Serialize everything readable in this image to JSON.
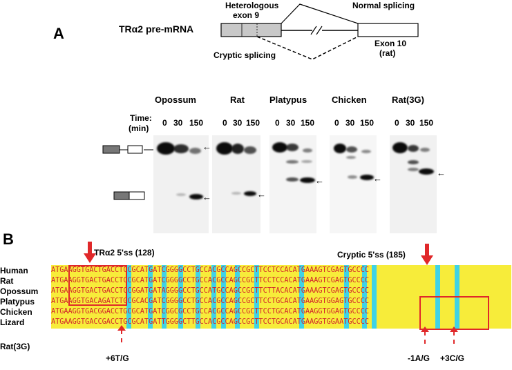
{
  "panel_a": {
    "letter": "A",
    "construct_label": "TRα2 pre-mRNA",
    "heterologous_label_line1": "Heterologous",
    "heterologous_label_line2": "exon 9",
    "normal_splicing": "Normal splicing",
    "cryptic_splicing": "Cryptic splicing",
    "exon10_line1": "Exon 10",
    "exon10_line2": "(rat)",
    "species": [
      "Opossum",
      "Rat",
      "Platypus",
      "Chicken",
      "Rat(3G)"
    ],
    "time_label_line1": "Time:",
    "time_label_line2": "(min)",
    "timepoints": [
      "0",
      "30",
      "150"
    ]
  },
  "panel_b": {
    "letter": "B",
    "site1_label": "TRα2 5'ss (128)",
    "site2_label": "Cryptic 5'ss (185)",
    "sequences": [
      {
        "species": "Human",
        "seq": "ATGAAGGTGACTGACCTCCGCATGATCGGGGCCTGCCACGCCAGCCGCTTCCTCCACATGAAAGTCGAGTGCCCC"
      },
      {
        "species": "Rat",
        "seq": "ATGAAGGTGACTGACCTCCGCATGATCGGGGCCTGCCACGCCAGCCGCTTCCTCCACATGAAAGTCGAGTGCCCC"
      },
      {
        "species": "Opossum",
        "seq": "ATGAAGGTGACTGACCTCCGGATGATAGGGGCCTGCCATGCCAGCCGCTTCTTACACATGAAAGTCGAGTGCCCC"
      },
      {
        "species": "Platypus",
        "seq": "ATGAAGGTGACAGATCTGCGCACGATCGGGGCCTGCCACGCCAGCCGCTTCCTGCACATGAAGGTGGAGTGCCCC"
      },
      {
        "species": "Chicken",
        "seq": "ATGAAGGTGACGGACCTGCGCATGATCGGCGCCTGCCACGCCAGCCGCTTCCTGCACATGAAGGTGGAGTGCCCC"
      },
      {
        "species": "Lizard",
        "seq": "ATGAAGGTGACCGACCTGCGCATGATTGGGGCTTGCCACGCCAGCCGCTTCCTGCACATGAAGGTGGAATGCCCC"
      }
    ],
    "mutant_label": "Rat(3G)",
    "mut1": "+6T/G",
    "mut2": "-1A/G",
    "mut3": "+3C/G"
  },
  "colors": {
    "highlight_yellow": "#f7ec3a",
    "highlight_cyan": "#3fd3e6",
    "sequence_red": "#d2232a",
    "box_red": "#e0282a"
  }
}
